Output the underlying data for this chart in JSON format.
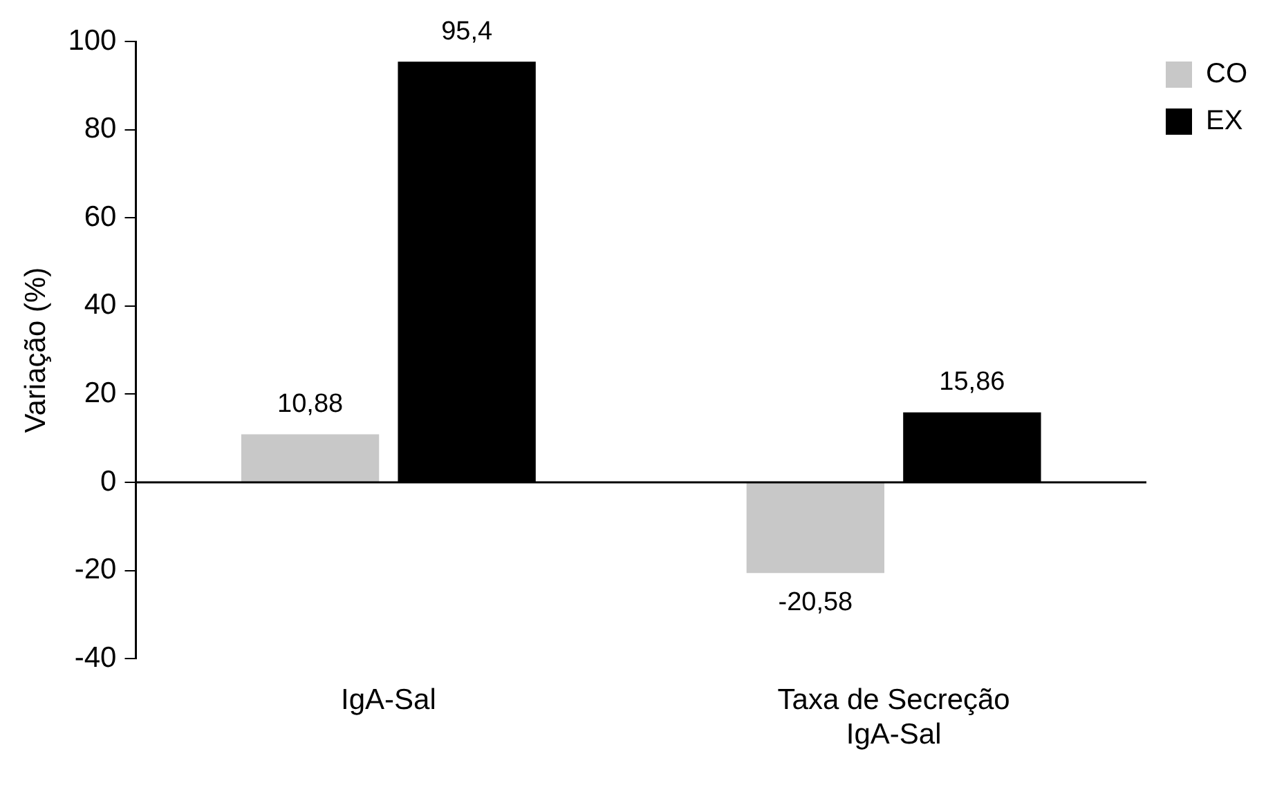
{
  "chart_data": {
    "type": "bar",
    "ylabel": "Variação (%)",
    "categories": [
      "IgA-Sal",
      "Taxa de Secreção IgA-Sal"
    ],
    "series": [
      {
        "name": "CO",
        "color": "#c8c8c8",
        "values": [
          10.88,
          -20.58
        ],
        "value_labels": [
          "10,88",
          "-20,58"
        ]
      },
      {
        "name": "EX",
        "color": "#000000",
        "values": [
          95.4,
          15.86
        ],
        "value_labels": [
          "95,4",
          "15,86"
        ]
      }
    ],
    "ylim": [
      -40,
      100
    ],
    "yticks": [
      -40,
      -20,
      0,
      20,
      40,
      60,
      80,
      100
    ],
    "ref_lines": [
      {
        "axis": "y",
        "value": 0,
        "color": "#000000"
      }
    ],
    "grid": false,
    "legend": "right"
  }
}
